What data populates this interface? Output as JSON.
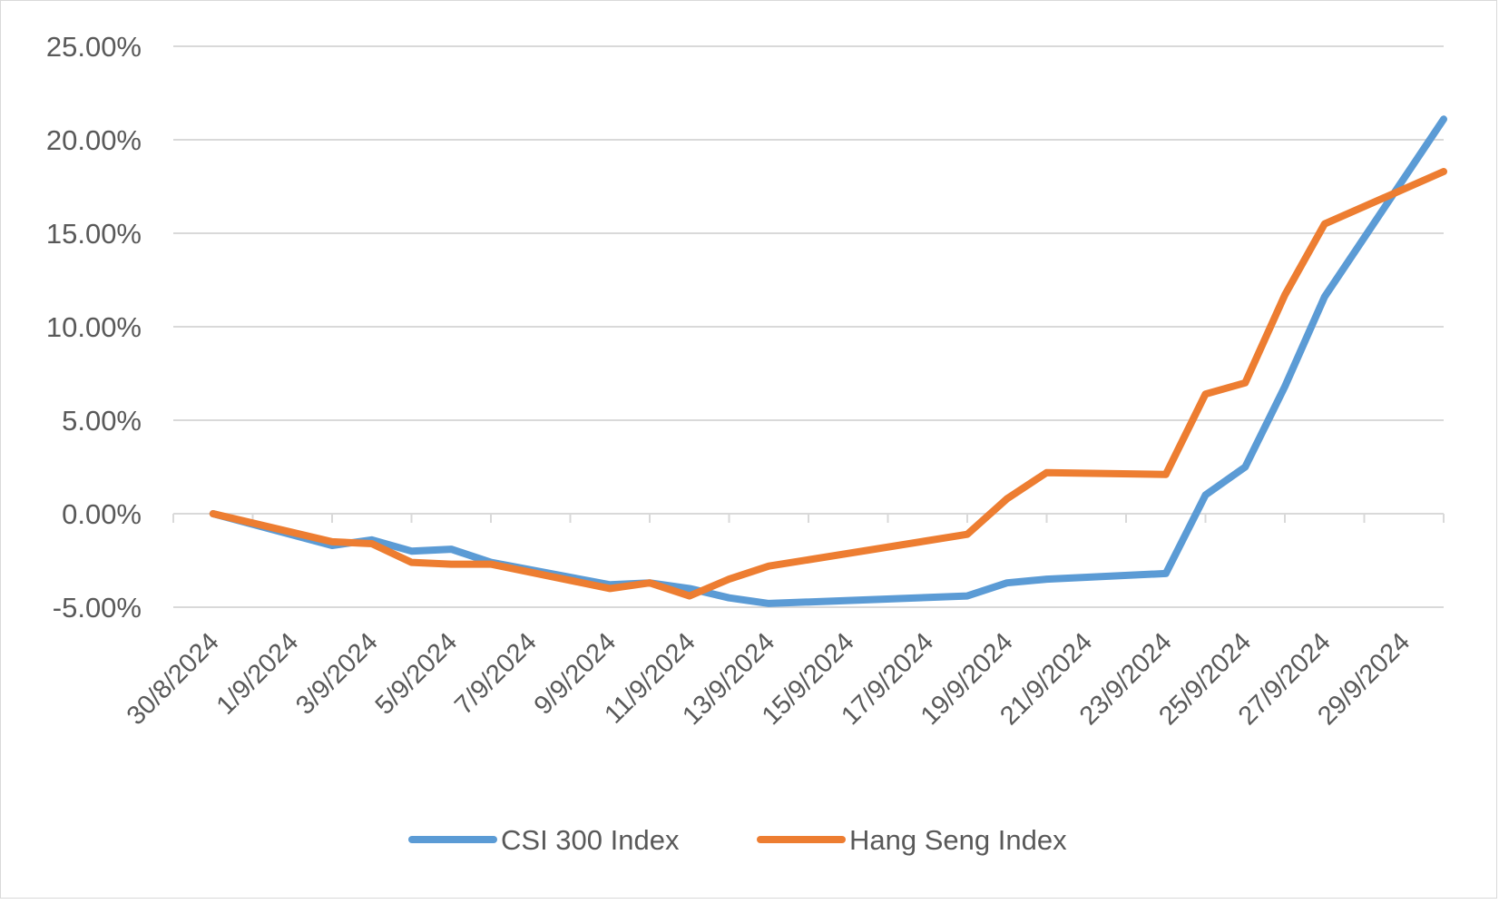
{
  "chart_data": {
    "type": "line",
    "title": "",
    "xlabel": "",
    "ylabel": "",
    "ylim": [
      -5,
      25
    ],
    "y_ticks": [
      {
        "value": 25,
        "label": "25.00%"
      },
      {
        "value": 20,
        "label": "20.00%"
      },
      {
        "value": 15,
        "label": "15.00%"
      },
      {
        "value": 10,
        "label": "10.00%"
      },
      {
        "value": 5,
        "label": "5.00%"
      },
      {
        "value": 0,
        "label": "0.00%"
      },
      {
        "value": -5,
        "label": "-5.00%"
      }
    ],
    "x_tick_labels": [
      "30/8/2024",
      "1/9/2024",
      "3/9/2024",
      "5/9/2024",
      "7/9/2024",
      "9/9/2024",
      "11/9/2024",
      "13/9/2024",
      "15/9/2024",
      "17/9/2024",
      "19/9/2024",
      "21/9/2024",
      "23/9/2024",
      "25/9/2024",
      "27/9/2024",
      "29/9/2024"
    ],
    "grid": true,
    "legend_position": "bottom",
    "x": [
      "30/8/2024",
      "2/9/2024",
      "3/9/2024",
      "4/9/2024",
      "5/9/2024",
      "6/9/2024",
      "9/9/2024",
      "10/9/2024",
      "11/9/2024",
      "12/9/2024",
      "13/9/2024",
      "18/9/2024",
      "19/9/2024",
      "20/9/2024",
      "23/9/2024",
      "24/9/2024",
      "25/9/2024",
      "26/9/2024",
      "27/9/2024",
      "30/9/2024"
    ],
    "series": [
      {
        "name": "CSI 300 Index",
        "color": "#5b9bd5",
        "values": [
          0,
          -1.7,
          -1.4,
          -2.0,
          -1.9,
          -2.6,
          -3.8,
          -3.7,
          -4.0,
          -4.5,
          -4.8,
          -4.4,
          -3.7,
          -3.5,
          -3.2,
          1.0,
          2.5,
          6.8,
          11.6,
          21.1
        ]
      },
      {
        "name": "Hang Seng Index",
        "color": "#ed7d31",
        "values": [
          0,
          -1.5,
          -1.6,
          -2.6,
          -2.7,
          -2.7,
          -4.0,
          -3.7,
          -4.4,
          -3.5,
          -2.8,
          -1.1,
          0.8,
          2.2,
          2.1,
          6.4,
          7.0,
          11.7,
          15.5,
          18.3
        ]
      }
    ]
  }
}
